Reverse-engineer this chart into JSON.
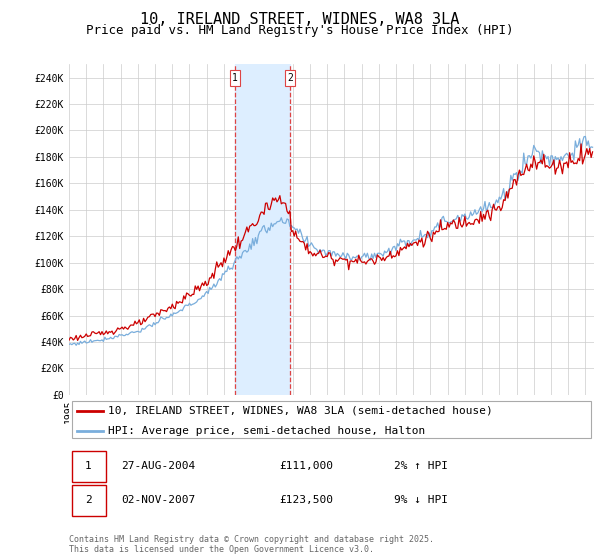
{
  "title": "10, IRELAND STREET, WIDNES, WA8 3LA",
  "subtitle": "Price paid vs. HM Land Registry's House Price Index (HPI)",
  "ylim": [
    0,
    250000
  ],
  "yticks": [
    0,
    20000,
    40000,
    60000,
    80000,
    100000,
    120000,
    140000,
    160000,
    180000,
    200000,
    220000,
    240000
  ],
  "ytick_labels": [
    "£0",
    "£20K",
    "£40K",
    "£60K",
    "£80K",
    "£100K",
    "£120K",
    "£140K",
    "£160K",
    "£180K",
    "£200K",
    "£220K",
    "£240K"
  ],
  "legend_property_label": "10, IRELAND STREET, WIDNES, WA8 3LA (semi-detached house)",
  "legend_hpi_label": "HPI: Average price, semi-detached house, Halton",
  "property_color": "#cc0000",
  "hpi_color": "#7aaedc",
  "transaction1_label": "1",
  "transaction1_date": "27-AUG-2004",
  "transaction1_price": "£111,000",
  "transaction1_hpi": "2% ↑ HPI",
  "transaction1_x": 2004.65,
  "transaction2_label": "2",
  "transaction2_date": "02-NOV-2007",
  "transaction2_price": "£123,500",
  "transaction2_hpi": "9% ↓ HPI",
  "transaction2_x": 2007.84,
  "shaded_color": "#ddeeff",
  "dashed_color": "#dd4444",
  "copyright_text": "Contains HM Land Registry data © Crown copyright and database right 2025.\nThis data is licensed under the Open Government Licence v3.0.",
  "background_color": "#ffffff",
  "grid_color": "#cccccc",
  "title_fontsize": 11,
  "subtitle_fontsize": 9,
  "tick_fontsize": 7,
  "legend_fontsize": 8,
  "table_fontsize": 8,
  "copyright_fontsize": 6
}
